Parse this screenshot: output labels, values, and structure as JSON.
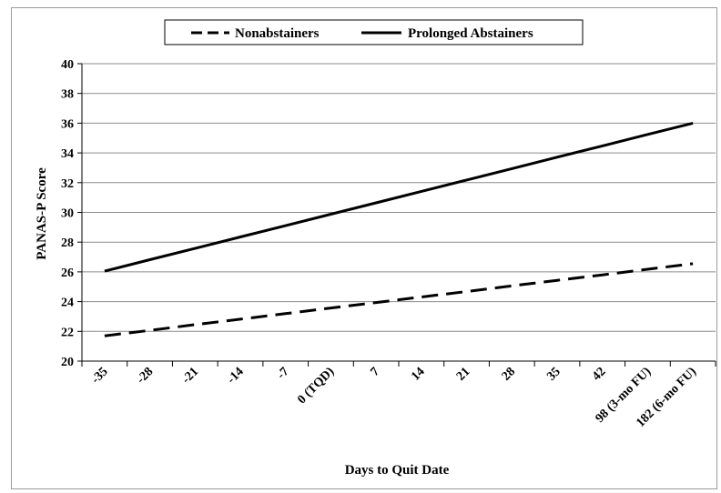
{
  "chart_data": {
    "type": "line",
    "title": "",
    "xlabel": "Days to Quit Date",
    "ylabel": "PANAS-P Score",
    "ylim": [
      20,
      40
    ],
    "yticks": [
      20,
      22,
      24,
      26,
      28,
      30,
      32,
      34,
      36,
      38,
      40
    ],
    "grid": true,
    "legend_position": "top-center",
    "categories": [
      "-35",
      "-28",
      "-21",
      "-14",
      "-7",
      "0 (TQD)",
      "7",
      "14",
      "21",
      "28",
      "35",
      "42",
      "98 (3-mo FU)",
      "182 (6-mo FU)"
    ],
    "series": [
      {
        "name": "Nonabstainers",
        "style": "dashed",
        "color": "#000000",
        "values": [
          21.7,
          22.07,
          22.45,
          22.82,
          23.19,
          23.57,
          23.94,
          24.31,
          24.68,
          25.06,
          25.43,
          25.8,
          26.18,
          26.55
        ]
      },
      {
        "name": "Prolonged Abstainers",
        "style": "solid",
        "color": "#000000",
        "values": [
          26.05,
          26.82,
          27.58,
          28.35,
          29.11,
          29.88,
          30.64,
          31.41,
          32.18,
          32.94,
          33.71,
          34.47,
          35.24,
          36.0
        ]
      }
    ]
  }
}
